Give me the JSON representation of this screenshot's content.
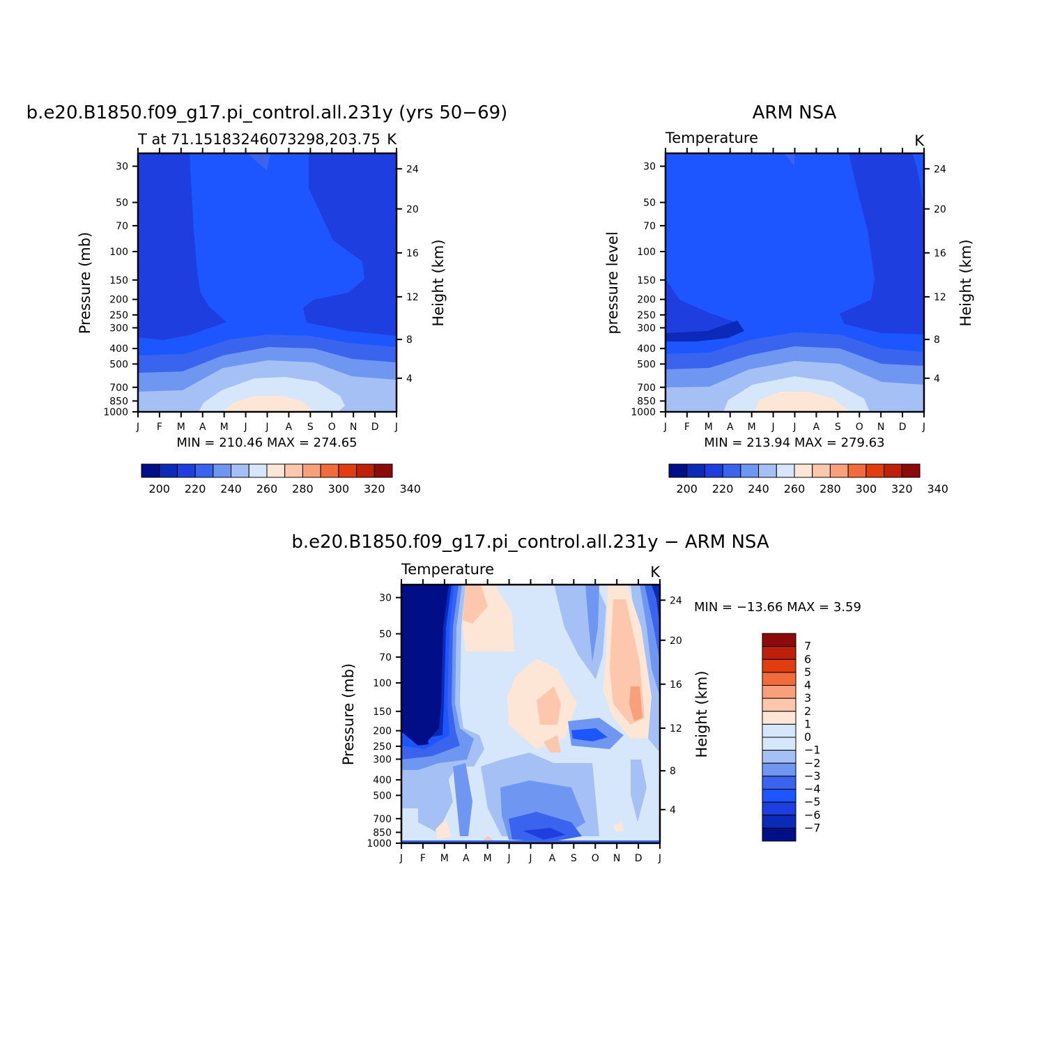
{
  "palette": {
    "colors": [
      "#000e88",
      "#0b2ab8",
      "#1f3ee0",
      "#3a64ee",
      "#6f97f2",
      "#a4c0f5",
      "#d6e6fb",
      "#fde6d5",
      "#fcc7ad",
      "#f8a07c",
      "#f26b3d",
      "#e13d10",
      "#bf200a",
      "#8c0a0a"
    ],
    "abs_levels": [
      200,
      210,
      220,
      230,
      240,
      250,
      260,
      270,
      280,
      290,
      300,
      310,
      320,
      330,
      340
    ]
  },
  "chart_data": [
    {
      "id": "model",
      "type": "heatmap",
      "title": "b.e20.B1850.f09_g17.pi_control.all.231y (yrs 50−69)",
      "subtitle_left": "T at 71.15183246073298,203.75",
      "subtitle_right": "K",
      "ylabel_left": "Pressure (mb)",
      "ylabel_right": "Height (km)",
      "x_ticks": [
        "J",
        "F",
        "M",
        "A",
        "M",
        "J",
        "J",
        "A",
        "S",
        "O",
        "N",
        "D",
        "J"
      ],
      "p_ticks": [
        "30",
        "50",
        "70",
        "100",
        "150",
        "200",
        "250",
        "300",
        "400",
        "500",
        "700",
        "850",
        "1000"
      ],
      "h_ticks": [
        "24",
        "20",
        "16",
        "12",
        "8",
        "4"
      ],
      "stats": "MIN = 210.46  MAX = 274.65",
      "cb_labels": [
        "200",
        "220",
        "240",
        "260",
        "280",
        "300",
        "320",
        "340"
      ],
      "min": 210.46,
      "max": 274.65
    },
    {
      "id": "obs",
      "type": "heatmap",
      "title": "ARM NSA",
      "subtitle_left": "Temperature",
      "subtitle_right": "K",
      "ylabel_left": "pressure level",
      "ylabel_right": "Height (km)",
      "x_ticks": [
        "J",
        "F",
        "M",
        "A",
        "M",
        "J",
        "J",
        "A",
        "S",
        "O",
        "N",
        "D",
        "J"
      ],
      "p_ticks": [
        "30",
        "50",
        "70",
        "100",
        "150",
        "200",
        "250",
        "300",
        "400",
        "500",
        "700",
        "850",
        "1000"
      ],
      "h_ticks": [
        "24",
        "20",
        "16",
        "12",
        "8",
        "4"
      ],
      "stats": "MIN = 213.94  MAX = 279.63",
      "cb_labels": [
        "200",
        "220",
        "240",
        "260",
        "280",
        "300",
        "320",
        "340"
      ],
      "min": 213.94,
      "max": 279.63
    },
    {
      "id": "diff",
      "type": "heatmap",
      "title": "b.e20.B1850.f09_g17.pi_control.all.231y − ARM NSA",
      "subtitle_left": "Temperature",
      "subtitle_right": "K",
      "ylabel_left": "Pressure (mb)",
      "ylabel_right": "Height (km)",
      "x_ticks": [
        "J",
        "F",
        "M",
        "A",
        "M",
        "J",
        "J",
        "A",
        "S",
        "O",
        "N",
        "D",
        "J"
      ],
      "p_ticks": [
        "30",
        "50",
        "70",
        "100",
        "150",
        "200",
        "250",
        "300",
        "400",
        "500",
        "700",
        "850",
        "1000"
      ],
      "h_ticks": [
        "24",
        "20",
        "16",
        "12",
        "8",
        "4"
      ],
      "stats": "MIN = −13.66  MAX =    3.59",
      "cb_labels": [
        "7",
        "6",
        "5",
        "4",
        "3",
        "2",
        "1",
        "0",
        "−1",
        "−2",
        "−3",
        "−4",
        "−5",
        "−6",
        "−7"
      ],
      "min": -13.66,
      "max": 3.59
    }
  ]
}
